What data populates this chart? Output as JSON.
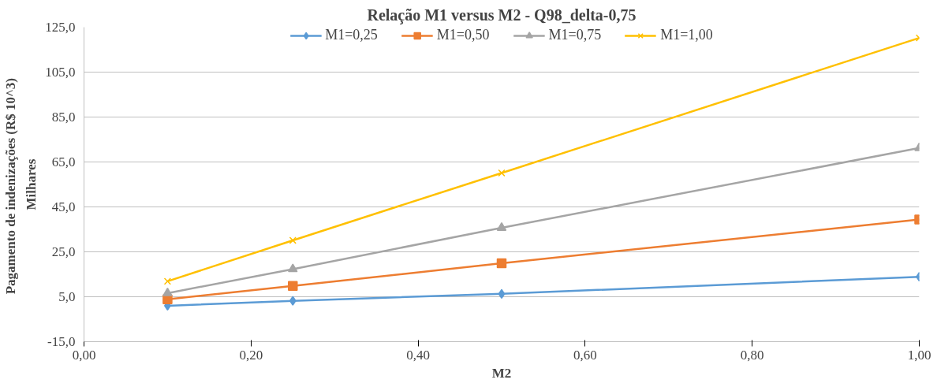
{
  "chart_data": {
    "type": "line",
    "title": "Relação M1 versus M2 - Q98_delta-0,75",
    "xlabel": "M2",
    "ylabel": "Pagamento de indenizações  (R$ 10^3)",
    "annotations": [
      "Milhares"
    ],
    "x": [
      0.1,
      0.25,
      0.5,
      1.0
    ],
    "series": [
      {
        "name": "M1=0,25",
        "color": "#5b9bd5",
        "marker": "diamond",
        "values": [
          1.0,
          3.2,
          6.3,
          13.9
        ]
      },
      {
        "name": "M1=0,50",
        "color": "#ed7d31",
        "marker": "square",
        "values": [
          3.9,
          9.8,
          19.9,
          39.4
        ]
      },
      {
        "name": "M1=0,75",
        "color": "#a5a5a5",
        "marker": "triangle",
        "values": [
          6.6,
          17.3,
          35.7,
          71.2
        ]
      },
      {
        "name": "M1=1,00",
        "color": "#ffc000",
        "marker": "cross",
        "values": [
          11.9,
          30.1,
          60.1,
          120.2
        ]
      }
    ],
    "xlim": [
      0,
      1
    ],
    "xticks": [
      {
        "value": 0,
        "label": "0,00"
      },
      {
        "value": 0.2,
        "label": "0,20"
      },
      {
        "value": 0.4,
        "label": "0,40"
      },
      {
        "value": 0.6,
        "label": "0,60"
      },
      {
        "value": 0.8,
        "label": "0,80"
      },
      {
        "value": 1.0,
        "label": "1,00"
      }
    ],
    "ylim": [
      -15,
      125
    ],
    "yticks": [
      {
        "value": -15,
        "label": "-15,0"
      },
      {
        "value": 5,
        "label": "5,0"
      },
      {
        "value": 25,
        "label": "25,0"
      },
      {
        "value": 45,
        "label": "45,0"
      },
      {
        "value": 65,
        "label": "65,0"
      },
      {
        "value": 85,
        "label": "85,0"
      },
      {
        "value": 105,
        "label": "105,0"
      },
      {
        "value": 125,
        "label": "125,0"
      }
    ],
    "grid": "y",
    "legend": "top",
    "line_style": "solid"
  }
}
